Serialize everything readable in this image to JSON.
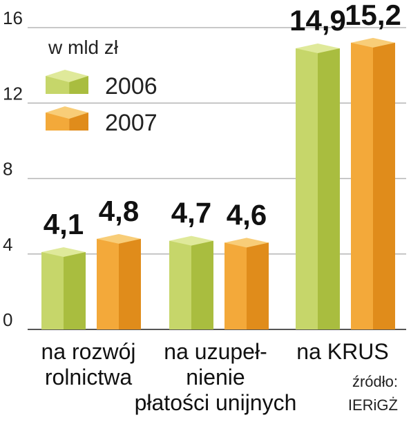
{
  "chart_data": {
    "type": "bar",
    "unit_label": "w mld zł",
    "categories": [
      [
        "na rozwój",
        "rolnictwa"
      ],
      [
        "na uzupeł-",
        "nienie",
        "płatości unijnych"
      ],
      [
        "na KRUS"
      ]
    ],
    "series": [
      {
        "name": "2006",
        "values": [
          4.1,
          4.7,
          14.9
        ],
        "value_labels": [
          "4,1",
          "4,7",
          "14,9"
        ]
      },
      {
        "name": "2007",
        "values": [
          4.8,
          4.6,
          15.2
        ],
        "value_labels": [
          "4,8",
          "4,6",
          "15,2"
        ]
      }
    ],
    "ylim": [
      0,
      16
    ],
    "yticks": [
      0,
      4,
      8,
      12,
      16
    ],
    "grid": true,
    "legend_position": "top-left",
    "source": [
      "źródło:",
      "IERiGŻ"
    ]
  },
  "colors": {
    "series_2006": {
      "front": "#c6d66a",
      "side": "#a9bd3f",
      "top": "#dfe99a"
    },
    "series_2007": {
      "front": "#f3a93a",
      "side": "#e08c1b",
      "top": "#f8cd78"
    },
    "grid": "#b5b5b5",
    "axis": "#555555"
  }
}
